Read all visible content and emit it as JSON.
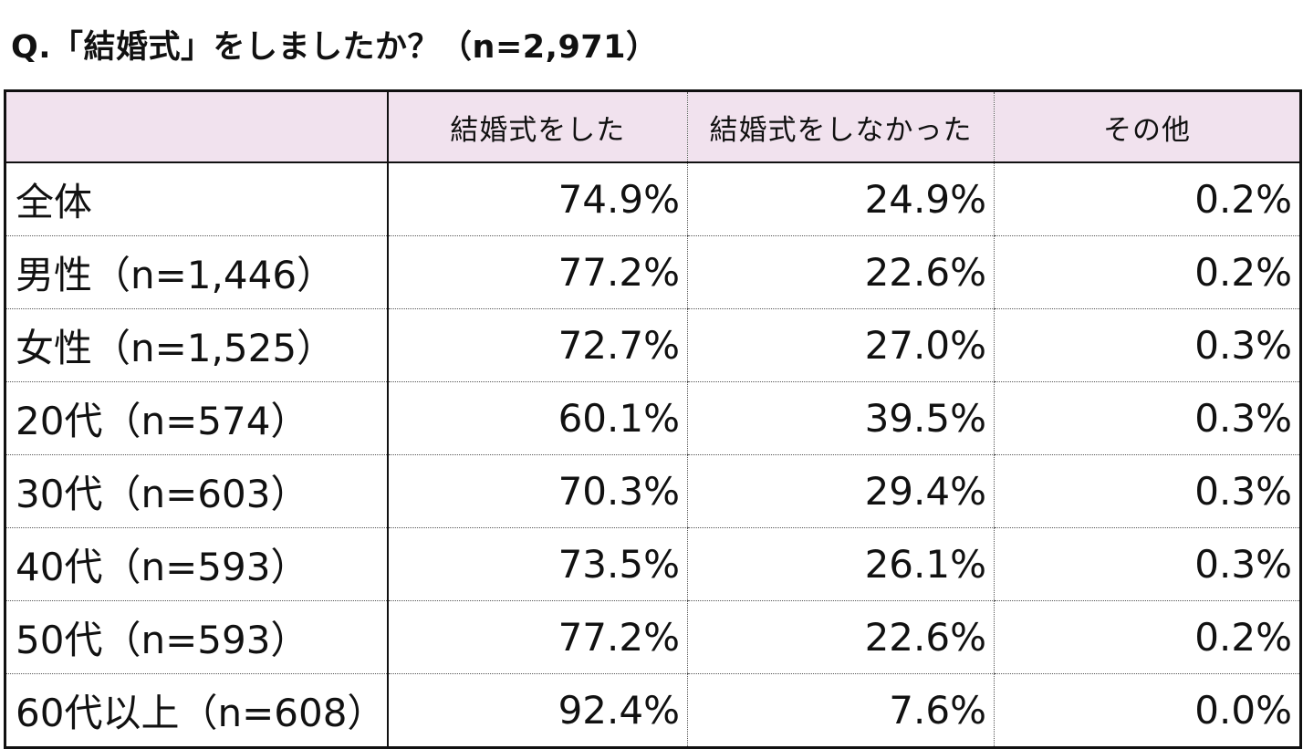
{
  "title": "Q.「結婚式」をしましたか？（n=2,971）",
  "colors": {
    "header_background": "#f1e2ee",
    "border": "#111111",
    "text": "#111111"
  },
  "chart_data": {
    "type": "table",
    "title": "Q.「結婚式」をしましたか？（n=2,971）",
    "columns": [
      "",
      "結婚式をした",
      "結婚式をしなかった",
      "その他"
    ],
    "rows": [
      {
        "label": "全体",
        "values": [
          "74.9%",
          "24.9%",
          "0.2%"
        ]
      },
      {
        "label": "男性（n=1,446）",
        "values": [
          "77.2%",
          "22.6%",
          "0.2%"
        ]
      },
      {
        "label": "女性（n=1,525）",
        "values": [
          "72.7%",
          "27.0%",
          "0.3%"
        ]
      },
      {
        "label": "20代（n=574）",
        "values": [
          "60.1%",
          "39.5%",
          "0.3%"
        ]
      },
      {
        "label": "30代（n=603）",
        "values": [
          "70.3%",
          "29.4%",
          "0.3%"
        ]
      },
      {
        "label": "40代（n=593）",
        "values": [
          "73.5%",
          "26.1%",
          "0.3%"
        ]
      },
      {
        "label": "50代（n=593）",
        "values": [
          "77.2%",
          "22.6%",
          "0.2%"
        ]
      },
      {
        "label": "60代以上（n=608）",
        "values": [
          "92.4%",
          "7.6%",
          "0.0%"
        ]
      }
    ]
  }
}
